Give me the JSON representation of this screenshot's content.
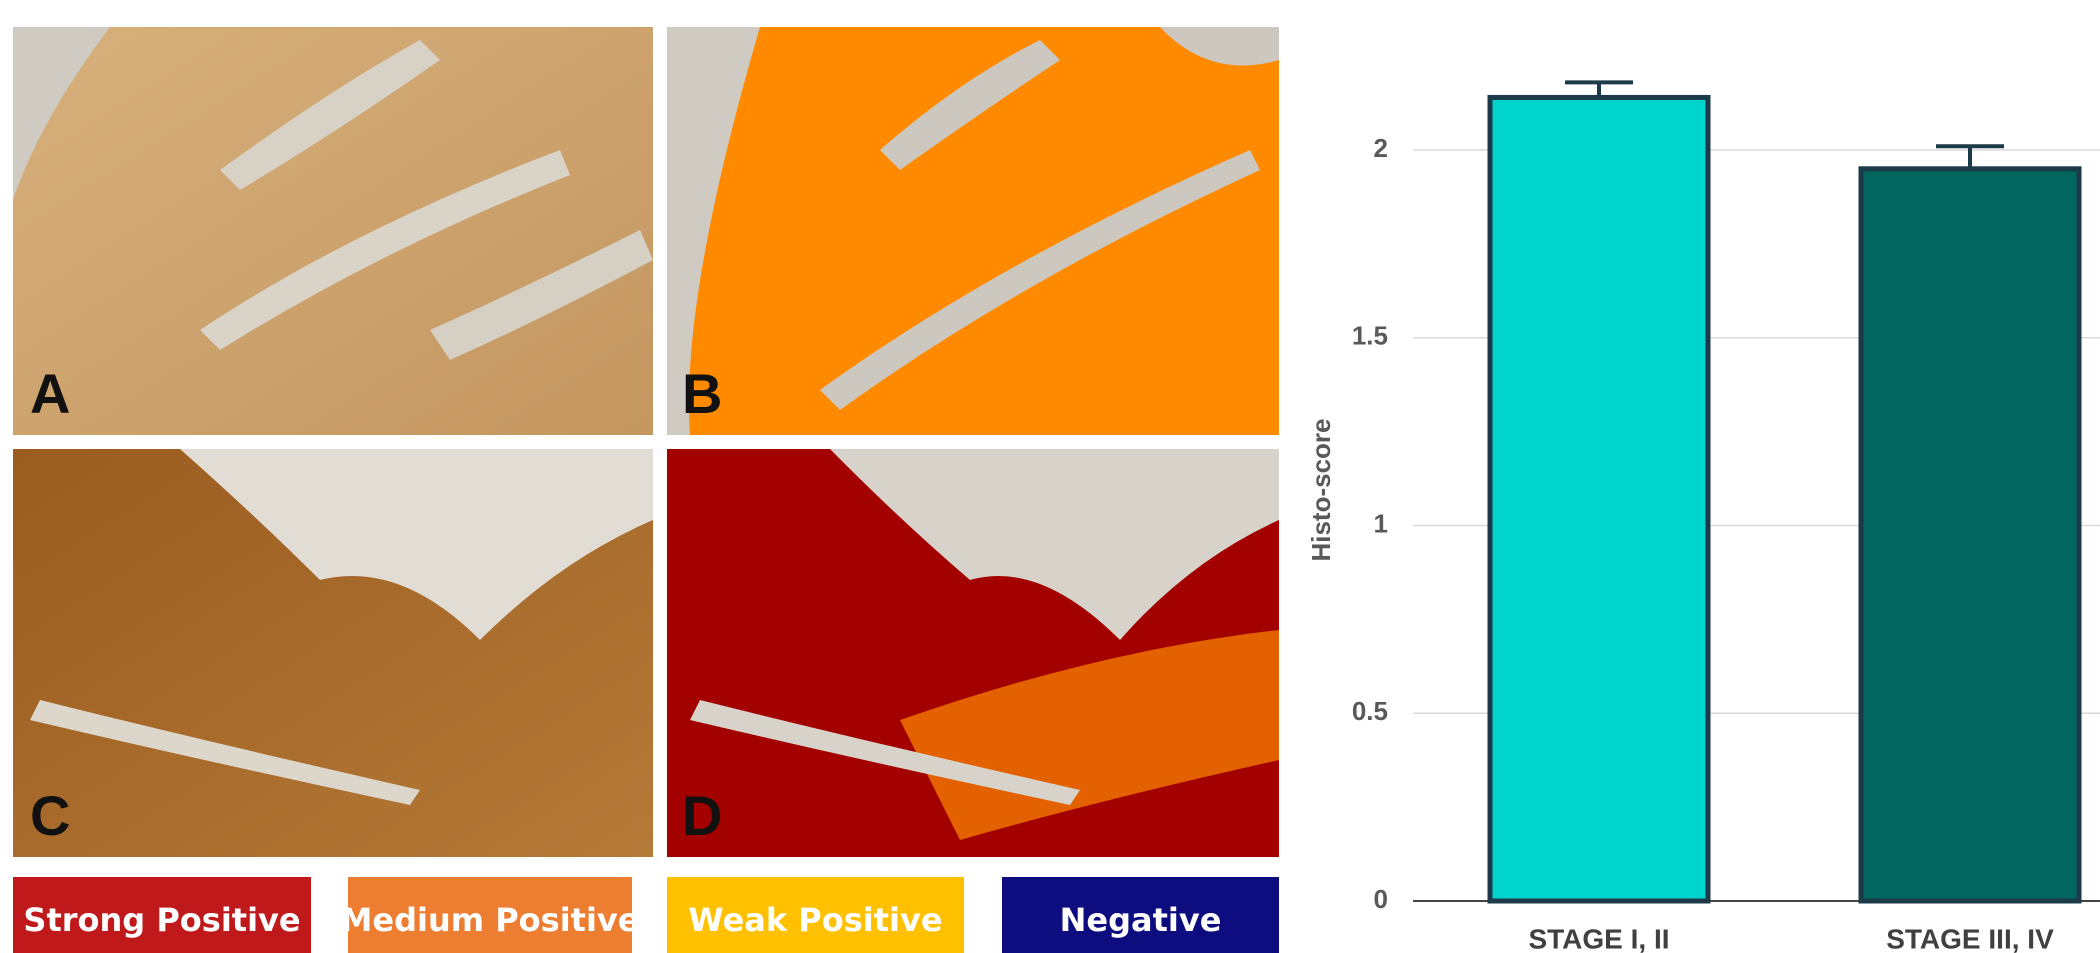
{
  "panels": [
    "A",
    "B",
    "C",
    "D"
  ],
  "legend": [
    {
      "label": "Strong Positive",
      "color": "#c0191c"
    },
    {
      "label": "Medium Positive",
      "color": "#ed7d31"
    },
    {
      "label": "Weak Positive",
      "color": "#ffc000"
    },
    {
      "label": "Negative",
      "color": "#0d0d80"
    }
  ],
  "chart_data": {
    "type": "bar",
    "y_label": "Histo-score",
    "categories": [
      "STAGE I, II",
      "STAGE III, IV"
    ],
    "values": [
      2.14,
      1.95
    ],
    "errors": [
      0.04,
      0.06
    ],
    "colors": [
      "#00d4cc",
      "#00665f"
    ],
    "ylim": [
      0,
      2.35
    ],
    "yticks": [
      0,
      0.5,
      1,
      1.5,
      2
    ],
    "grid": true
  }
}
